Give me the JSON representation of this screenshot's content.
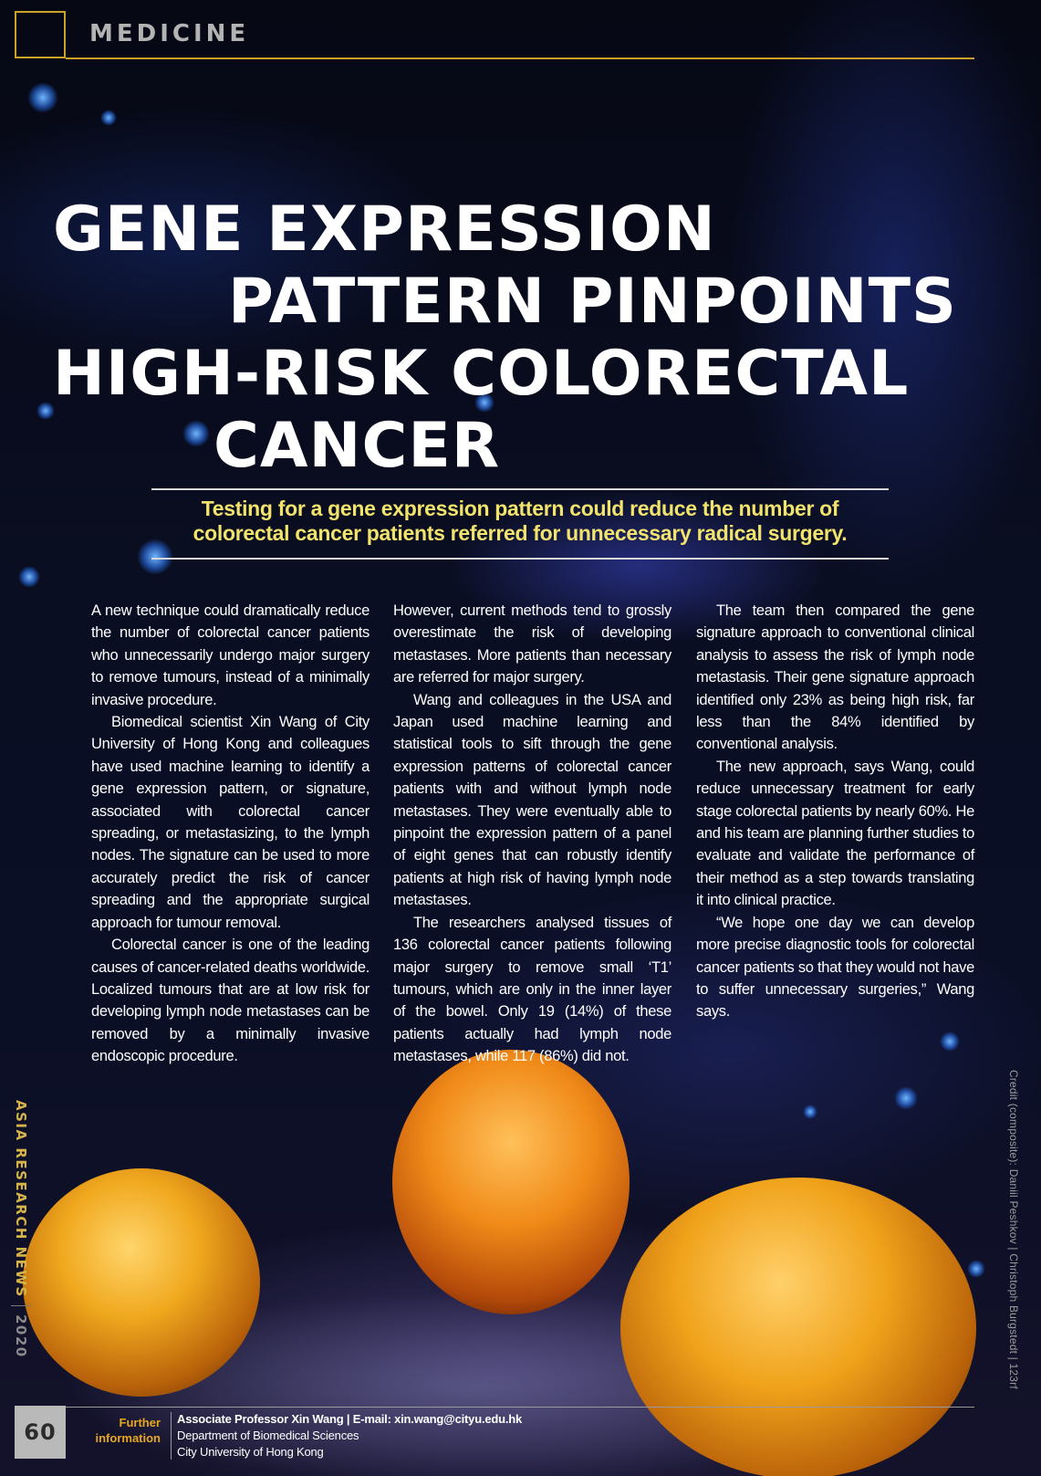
{
  "header": {
    "section": "MEDICINE"
  },
  "article": {
    "title_lines": [
      "GENE EXPRESSION",
      "PATTERN PINPOINTS",
      "HIGH-RISK COLORECTAL",
      "CANCER"
    ],
    "subtitle": "Testing for a gene expression pattern could reduce the number of colorectal cancer patients referred for unnecessary radical surgery.",
    "paragraphs": [
      "A new technique could dramatically reduce the number of colorectal cancer patients who unnecessarily undergo major surgery to remove tumours, instead of a minimally invasive procedure.",
      "Biomedical scientist Xin Wang of City University of Hong Kong and colleagues have used machine learning to identify a gene expression pattern, or signature, associated with colorectal cancer spreading, or metastasizing, to the lymph nodes. The signature can be used to more accurately predict the risk of cancer spreading and the appropriate surgical approach for tumour removal.",
      "Colorectal cancer is one of the leading causes of cancer-related deaths worldwide. Localized tumours that are at low risk for developing lymph node metastases can be removed by a minimally invasive endoscopic procedure.",
      "However, current methods tend to grossly overestimate the risk of developing metastases. More patients than necessary are referred for major surgery.",
      "Wang and colleagues in the USA and Japan used machine learning and statistical tools to sift through the gene expression patterns of colorectal cancer patients with and without lymph node metastases. They were eventually able to pinpoint the expression pattern of a panel of eight genes that can robustly identify patients at high risk of having lymph node metastases.",
      "The researchers analysed tissues of 136 colorectal cancer patients following major surgery to remove small ‘T1’ tumours, which are only in the inner layer of the bowel. Only 19 (14%) of these patients actually had lymph node metastases, while 117 (86%) did not.",
      "The team then compared the gene signature approach to conventional clinical analysis to assess the risk of lymph node metastasis. Their gene signature approach identified only 23% as being high risk, far less than the 84% identified by conventional analysis.",
      "The new approach, says Wang, could reduce unnecessary treatment for early stage colorectal patients by nearly 60%. He and his team are planning further studies to evaluate and validate the performance of their method as a step towards translating it into clinical practice.",
      "“We hope one day we can develop more precise diagnostic tools for colorectal cancer patients so that they would not have to suffer unnecessary surgeries,” Wang says."
    ]
  },
  "side": {
    "publication": "ASIA RESEARCH NEWS",
    "year": "2020",
    "credit": "Credit (composite): Daniil Peshkov | Christoph Burgstedt | 123rf"
  },
  "footer": {
    "page_number": "60",
    "further_line1": "Further",
    "further_line2": "information",
    "contact_person": "Associate Professor Xin Wang",
    "contact_sep": "|",
    "contact_email": "E-mail: xin.wang@cityu.edu.hk",
    "department": "Department of Biomedical Sciences",
    "university": "City University of Hong Kong"
  },
  "colors": {
    "accent_gold": "#c9a227",
    "subtitle_yellow": "#f2e36d",
    "further_orange": "#e8a81e"
  }
}
